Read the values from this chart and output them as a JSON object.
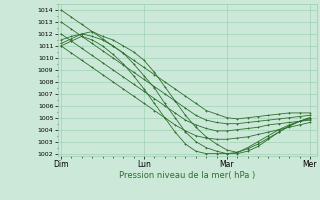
{
  "xlabel": "Pression niveau de la mer( hPa )",
  "background_color": "#cce8d8",
  "plot_bg_color": "#cce8d8",
  "grid_color": "#99ccb0",
  "line_color": "#2d6e2d",
  "marker_color": "#2d6e2d",
  "x_ticks_labels": [
    "Dim",
    "Lun",
    "Mar",
    "Mer"
  ],
  "x_ticks_pos": [
    0,
    48,
    96,
    144
  ],
  "ylim": [
    1001.8,
    1014.5
  ],
  "xlim": [
    -2,
    148
  ],
  "yticks": [
    1002,
    1003,
    1004,
    1005,
    1006,
    1007,
    1008,
    1009,
    1010,
    1011,
    1012,
    1013,
    1014
  ],
  "series": [
    {
      "x": [
        0,
        6,
        12,
        18,
        24,
        30,
        36,
        42,
        48,
        54,
        60,
        66,
        72,
        78,
        84,
        90,
        96,
        102,
        108,
        114,
        120,
        126,
        132,
        138,
        144
      ],
      "y": [
        1014.0,
        1013.4,
        1012.8,
        1012.2,
        1011.6,
        1011.0,
        1010.4,
        1009.8,
        1009.2,
        1008.6,
        1008.0,
        1007.4,
        1006.8,
        1006.2,
        1005.6,
        1005.3,
        1005.0,
        1004.9,
        1005.0,
        1005.1,
        1005.2,
        1005.3,
        1005.4,
        1005.4,
        1005.4
      ]
    },
    {
      "x": [
        0,
        6,
        12,
        18,
        24,
        30,
        36,
        42,
        48,
        54,
        60,
        66,
        72,
        78,
        84,
        90,
        96,
        102,
        108,
        114,
        120,
        126,
        132,
        138,
        144
      ],
      "y": [
        1013.0,
        1012.4,
        1011.8,
        1011.2,
        1010.6,
        1010.0,
        1009.4,
        1008.8,
        1008.2,
        1007.6,
        1007.0,
        1006.4,
        1005.8,
        1005.2,
        1004.8,
        1004.6,
        1004.5,
        1004.5,
        1004.6,
        1004.7,
        1004.8,
        1004.9,
        1005.0,
        1005.1,
        1005.2
      ]
    },
    {
      "x": [
        0,
        6,
        12,
        18,
        24,
        30,
        36,
        42,
        48,
        54,
        60,
        66,
        72,
        78,
        84,
        90,
        96,
        102,
        108,
        114,
        120,
        126,
        132,
        138,
        144
      ],
      "y": [
        1012.0,
        1011.4,
        1010.8,
        1010.2,
        1009.6,
        1009.0,
        1008.4,
        1007.8,
        1007.2,
        1006.6,
        1006.0,
        1005.4,
        1004.8,
        1004.4,
        1004.1,
        1003.9,
        1003.9,
        1004.0,
        1004.1,
        1004.2,
        1004.4,
        1004.5,
        1004.6,
        1004.7,
        1004.8
      ]
    },
    {
      "x": [
        0,
        6,
        12,
        18,
        24,
        30,
        36,
        42,
        48,
        54,
        60,
        66,
        72,
        78,
        84,
        90,
        96,
        102,
        108,
        114,
        120,
        126,
        132,
        138,
        144
      ],
      "y": [
        1011.0,
        1010.4,
        1009.8,
        1009.2,
        1008.6,
        1008.0,
        1007.4,
        1006.8,
        1006.2,
        1005.6,
        1005.0,
        1004.4,
        1003.9,
        1003.5,
        1003.3,
        1003.2,
        1003.2,
        1003.3,
        1003.4,
        1003.6,
        1003.8,
        1004.0,
        1004.2,
        1004.4,
        1004.6
      ]
    },
    {
      "x": [
        0,
        6,
        12,
        18,
        24,
        30,
        36,
        42,
        48,
        54,
        60,
        66,
        72,
        78,
        84,
        90,
        96,
        102,
        108,
        114,
        120,
        126,
        132,
        138,
        144
      ],
      "y": [
        1011.5,
        1011.8,
        1012.0,
        1012.2,
        1011.8,
        1011.5,
        1011.0,
        1010.5,
        1009.8,
        1008.8,
        1007.6,
        1006.4,
        1005.2,
        1004.2,
        1003.4,
        1002.8,
        1002.3,
        1002.1,
        1002.5,
        1003.0,
        1003.5,
        1004.0,
        1004.4,
        1004.7,
        1004.9
      ]
    },
    {
      "x": [
        0,
        6,
        12,
        18,
        24,
        30,
        36,
        42,
        48,
        54,
        60,
        66,
        72,
        78,
        84,
        90,
        96,
        102,
        108,
        114,
        120,
        126,
        132,
        138,
        144
      ],
      "y": [
        1011.2,
        1011.6,
        1012.0,
        1011.8,
        1011.5,
        1011.0,
        1010.4,
        1009.5,
        1008.5,
        1007.5,
        1006.2,
        1005.0,
        1003.8,
        1003.0,
        1002.5,
        1002.2,
        1002.0,
        1002.0,
        1002.2,
        1002.6,
        1003.2,
        1003.8,
        1004.3,
        1004.7,
        1005.0
      ]
    },
    {
      "x": [
        0,
        6,
        12,
        18,
        24,
        30,
        36,
        42,
        48,
        54,
        60,
        66,
        72,
        78,
        84,
        90,
        96,
        102,
        108,
        114,
        120,
        126,
        132,
        138,
        144
      ],
      "y": [
        1011.0,
        1011.4,
        1011.8,
        1011.5,
        1011.0,
        1010.3,
        1009.5,
        1008.5,
        1007.4,
        1006.2,
        1005.0,
        1003.8,
        1002.8,
        1002.2,
        1002.0,
        1002.0,
        1002.0,
        1002.1,
        1002.4,
        1002.8,
        1003.3,
        1003.8,
        1004.3,
        1004.7,
        1005.0
      ]
    }
  ]
}
